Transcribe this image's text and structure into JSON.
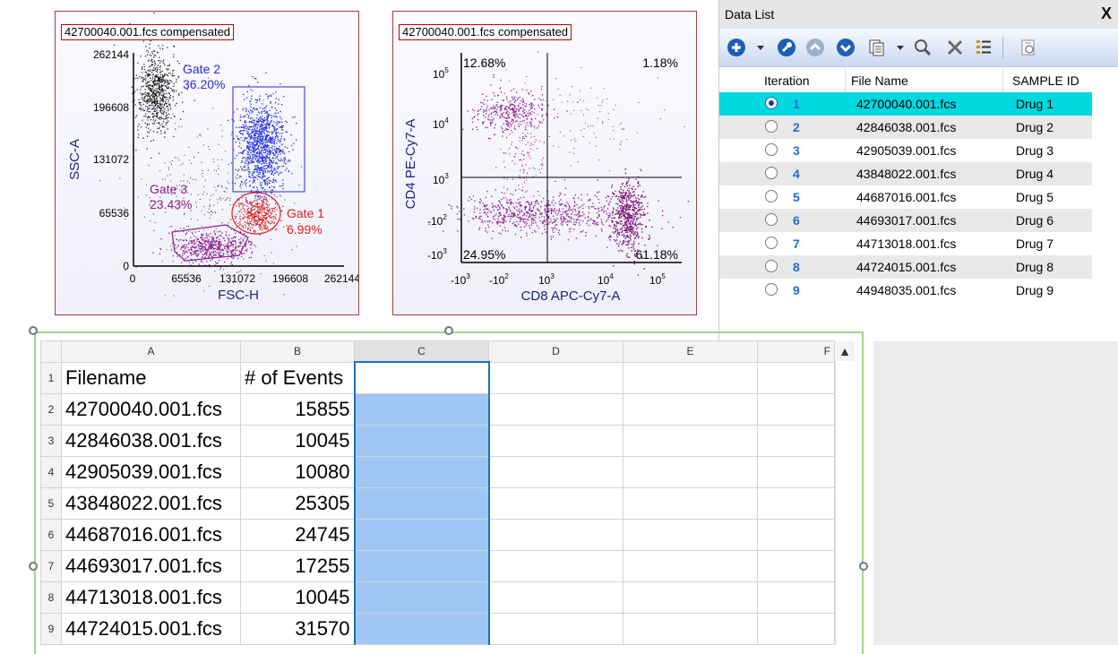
{
  "plot1": {
    "title": "42700040.001.fcs compensated",
    "xlabel": "FSC-H",
    "ylabel": "SSC-A",
    "xticks": [
      "0",
      "65536",
      "131072",
      "196608",
      "262144"
    ],
    "yticks": [
      "0",
      "65536",
      "131072",
      "196608",
      "262144"
    ],
    "gates": [
      {
        "name": "Gate 2",
        "percent": "36.20%",
        "color": "#2a2ad0"
      },
      {
        "name": "Gate 3",
        "percent": "23.43%",
        "color": "#8a1a8a"
      },
      {
        "name": "Gate 1",
        "percent": "6.99%",
        "color": "#e02020"
      }
    ]
  },
  "plot2": {
    "title": "42700040.001.fcs compensated",
    "xlabel": "CD8 APC-Cy7-A",
    "ylabel": "CD4 PE-Cy7-A",
    "quadrants": {
      "top_left": "12.68%",
      "top_right": "1.18%",
      "bottom_left": "24.95%",
      "bottom_right": "61.18%"
    }
  },
  "data_list": {
    "title": "Data List",
    "close": "X",
    "columns": [
      "Iteration",
      "File Name",
      "SAMPLE ID"
    ],
    "rows": [
      {
        "iteration": "1",
        "file": "42700040.001.fcs",
        "sample": "Drug 1",
        "selected": true
      },
      {
        "iteration": "2",
        "file": "42846038.001.fcs",
        "sample": "Drug 2"
      },
      {
        "iteration": "3",
        "file": "42905039.001.fcs",
        "sample": "Drug 3"
      },
      {
        "iteration": "4",
        "file": "43848022.001.fcs",
        "sample": "Drug 4"
      },
      {
        "iteration": "5",
        "file": "44687016.001.fcs",
        "sample": "Drug 5"
      },
      {
        "iteration": "6",
        "file": "44693017.001.fcs",
        "sample": "Drug 6"
      },
      {
        "iteration": "7",
        "file": "44713018.001.fcs",
        "sample": "Drug 7"
      },
      {
        "iteration": "8",
        "file": "44724015.001.fcs",
        "sample": "Drug 8"
      },
      {
        "iteration": "9",
        "file": "44948035.001.fcs",
        "sample": "Drug 9"
      }
    ],
    "toolbar_icons": [
      "add-icon",
      "dropdown-arrow-icon",
      "wrench-icon",
      "move-up-icon",
      "move-down-icon",
      "copy-icon",
      "dropdown-arrow-icon",
      "search-icon",
      "delete-icon",
      "list-settings-icon",
      "properties-icon"
    ]
  },
  "spreadsheet": {
    "columns": [
      "A",
      "B",
      "C",
      "D",
      "E",
      "F"
    ],
    "header_row": {
      "a": "Filename",
      "b": "# of Events"
    },
    "rows": [
      {
        "n": "1",
        "a": "Filename",
        "b": "# of Events"
      },
      {
        "n": "2",
        "a": "42700040.001.fcs",
        "b": "15855"
      },
      {
        "n": "3",
        "a": "42846038.001.fcs",
        "b": "10045"
      },
      {
        "n": "4",
        "a": "42905039.001.fcs",
        "b": "10080"
      },
      {
        "n": "5",
        "a": "43848022.001.fcs",
        "b": "25305"
      },
      {
        "n": "6",
        "a": "44687016.001.fcs",
        "b": "24745"
      },
      {
        "n": "7",
        "a": "44693017.001.fcs",
        "b": "17255"
      },
      {
        "n": "8",
        "a": "44713018.001.fcs",
        "b": "10045"
      },
      {
        "n": "9",
        "a": "44724015.001.fcs",
        "b": "31570"
      }
    ],
    "selected_column": "C"
  }
}
